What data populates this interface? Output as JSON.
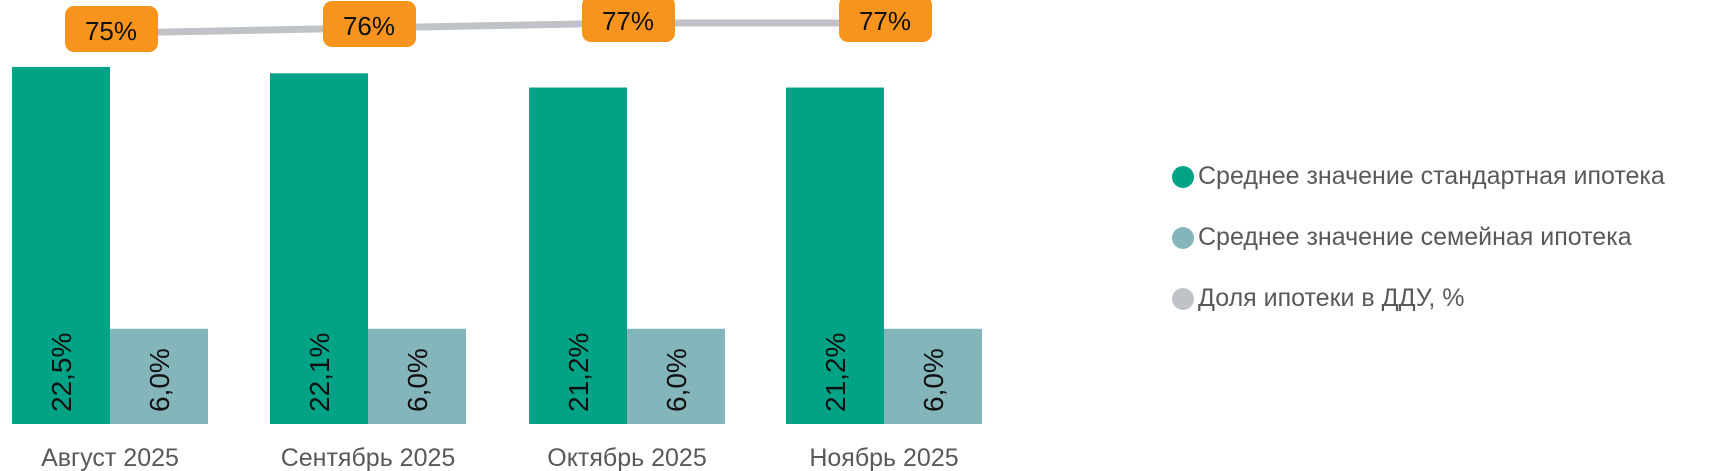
{
  "chart_data": {
    "type": "bar",
    "categories": [
      "Август 2025",
      "Сентябрь 2025",
      "Октябрь 2025",
      "Ноябрь 2025"
    ],
    "series": [
      {
        "name": "Среднее значение стандартная ипотека",
        "type": "bar",
        "color": "#00A386",
        "values": [
          22.5,
          22.1,
          21.2,
          21.2
        ],
        "labels": [
          "22,5%",
          "22,1%",
          "21,2%",
          "21,2%"
        ]
      },
      {
        "name": "Среднее значение семейная ипотека",
        "type": "bar",
        "color": "#84B5BA",
        "values": [
          6.0,
          6.0,
          6.0,
          6.0
        ],
        "labels": [
          "6,0%",
          "6,0%",
          "6,0%",
          "6,0%"
        ]
      },
      {
        "name": "Доля ипотеки в ДДУ, %",
        "type": "line",
        "color": "#BFC3C7",
        "label_bg": "#F7941D",
        "values": [
          75,
          76,
          77,
          77
        ],
        "labels": [
          "75%",
          "76%",
          "77%",
          "77%"
        ]
      }
    ],
    "legend_position": "right",
    "grid": false
  }
}
